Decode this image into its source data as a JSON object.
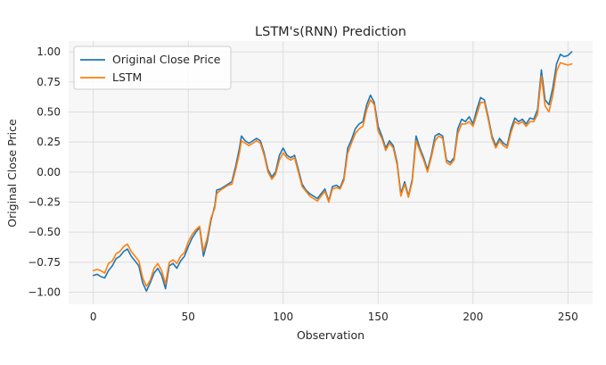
{
  "chart_data": {
    "type": "line",
    "title": "LSTM's(RNN) Prediction",
    "xlabel": "Observation",
    "ylabel": "Original Close Price",
    "xlim": [
      -13,
      263
    ],
    "ylim": [
      -1.1,
      1.09
    ],
    "xticks": [
      0,
      50,
      100,
      150,
      200,
      250
    ],
    "yticks": [
      -1.0,
      -0.75,
      -0.5,
      -0.25,
      0.0,
      0.25,
      0.5,
      0.75,
      1.0
    ],
    "xtick_labels": [
      "0",
      "50",
      "100",
      "150",
      "200",
      "250"
    ],
    "ytick_labels": [
      "−1.00",
      "−0.75",
      "−0.50",
      "−0.25",
      "0.00",
      "0.25",
      "0.50",
      "0.75",
      "1.00"
    ],
    "grid": true,
    "legend_position": "top-left",
    "series": [
      {
        "name": "Original Close Price",
        "color": "#1f77b4",
        "points": [
          [
            0,
            -0.86
          ],
          [
            2,
            -0.85
          ],
          [
            4,
            -0.87
          ],
          [
            6,
            -0.88
          ],
          [
            8,
            -0.82
          ],
          [
            10,
            -0.78
          ],
          [
            12,
            -0.72
          ],
          [
            14,
            -0.7
          ],
          [
            16,
            -0.66
          ],
          [
            18,
            -0.64
          ],
          [
            20,
            -0.7
          ],
          [
            22,
            -0.74
          ],
          [
            24,
            -0.78
          ],
          [
            26,
            -0.92
          ],
          [
            28,
            -0.99
          ],
          [
            30,
            -0.92
          ],
          [
            32,
            -0.84
          ],
          [
            34,
            -0.8
          ],
          [
            36,
            -0.86
          ],
          [
            38,
            -0.97
          ],
          [
            40,
            -0.78
          ],
          [
            42,
            -0.76
          ],
          [
            44,
            -0.8
          ],
          [
            46,
            -0.74
          ],
          [
            48,
            -0.7
          ],
          [
            50,
            -0.62
          ],
          [
            52,
            -0.55
          ],
          [
            54,
            -0.5
          ],
          [
            56,
            -0.46
          ],
          [
            58,
            -0.7
          ],
          [
            60,
            -0.58
          ],
          [
            62,
            -0.4
          ],
          [
            64,
            -0.28
          ],
          [
            65,
            -0.15
          ],
          [
            67,
            -0.14
          ],
          [
            69,
            -0.12
          ],
          [
            71,
            -0.1
          ],
          [
            73,
            -0.08
          ],
          [
            75,
            0.05
          ],
          [
            77,
            0.2
          ],
          [
            78,
            0.3
          ],
          [
            80,
            0.26
          ],
          [
            82,
            0.24
          ],
          [
            84,
            0.26
          ],
          [
            86,
            0.28
          ],
          [
            88,
            0.26
          ],
          [
            90,
            0.16
          ],
          [
            92,
            0.02
          ],
          [
            94,
            -0.04
          ],
          [
            96,
            0.0
          ],
          [
            98,
            0.14
          ],
          [
            100,
            0.2
          ],
          [
            102,
            0.14
          ],
          [
            104,
            0.12
          ],
          [
            106,
            0.14
          ],
          [
            108,
            0.02
          ],
          [
            110,
            -0.1
          ],
          [
            112,
            -0.15
          ],
          [
            114,
            -0.18
          ],
          [
            116,
            -0.2
          ],
          [
            118,
            -0.22
          ],
          [
            120,
            -0.18
          ],
          [
            122,
            -0.14
          ],
          [
            124,
            -0.24
          ],
          [
            126,
            -0.12
          ],
          [
            128,
            -0.11
          ],
          [
            130,
            -0.13
          ],
          [
            132,
            -0.05
          ],
          [
            134,
            0.2
          ],
          [
            136,
            0.27
          ],
          [
            138,
            0.36
          ],
          [
            140,
            0.4
          ],
          [
            142,
            0.42
          ],
          [
            144,
            0.56
          ],
          [
            146,
            0.64
          ],
          [
            148,
            0.58
          ],
          [
            150,
            0.38
          ],
          [
            152,
            0.3
          ],
          [
            154,
            0.2
          ],
          [
            156,
            0.26
          ],
          [
            158,
            0.22
          ],
          [
            160,
            0.08
          ],
          [
            162,
            -0.18
          ],
          [
            164,
            -0.08
          ],
          [
            166,
            -0.2
          ],
          [
            168,
            -0.06
          ],
          [
            170,
            0.3
          ],
          [
            172,
            0.2
          ],
          [
            174,
            0.12
          ],
          [
            176,
            0.02
          ],
          [
            178,
            0.14
          ],
          [
            180,
            0.3
          ],
          [
            182,
            0.32
          ],
          [
            184,
            0.3
          ],
          [
            186,
            0.1
          ],
          [
            188,
            0.08
          ],
          [
            190,
            0.12
          ],
          [
            192,
            0.36
          ],
          [
            194,
            0.44
          ],
          [
            196,
            0.42
          ],
          [
            198,
            0.46
          ],
          [
            200,
            0.4
          ],
          [
            202,
            0.52
          ],
          [
            204,
            0.62
          ],
          [
            206,
            0.6
          ],
          [
            208,
            0.46
          ],
          [
            210,
            0.3
          ],
          [
            212,
            0.22
          ],
          [
            214,
            0.28
          ],
          [
            216,
            0.24
          ],
          [
            218,
            0.22
          ],
          [
            220,
            0.36
          ],
          [
            222,
            0.45
          ],
          [
            224,
            0.42
          ],
          [
            226,
            0.44
          ],
          [
            228,
            0.4
          ],
          [
            230,
            0.45
          ],
          [
            232,
            0.44
          ],
          [
            234,
            0.52
          ],
          [
            236,
            0.85
          ],
          [
            238,
            0.6
          ],
          [
            240,
            0.56
          ],
          [
            242,
            0.7
          ],
          [
            244,
            0.9
          ],
          [
            246,
            0.98
          ],
          [
            248,
            0.96
          ],
          [
            250,
            0.97
          ],
          [
            252,
            1.0
          ]
        ]
      },
      {
        "name": "LSTM",
        "color": "#ff7f0e",
        "points": [
          [
            0,
            -0.82
          ],
          [
            2,
            -0.81
          ],
          [
            4,
            -0.82
          ],
          [
            6,
            -0.84
          ],
          [
            8,
            -0.76
          ],
          [
            10,
            -0.74
          ],
          [
            12,
            -0.68
          ],
          [
            14,
            -0.66
          ],
          [
            16,
            -0.62
          ],
          [
            18,
            -0.6
          ],
          [
            20,
            -0.66
          ],
          [
            22,
            -0.7
          ],
          [
            24,
            -0.74
          ],
          [
            26,
            -0.88
          ],
          [
            28,
            -0.95
          ],
          [
            30,
            -0.9
          ],
          [
            32,
            -0.8
          ],
          [
            34,
            -0.76
          ],
          [
            36,
            -0.82
          ],
          [
            38,
            -0.93
          ],
          [
            40,
            -0.75
          ],
          [
            42,
            -0.73
          ],
          [
            44,
            -0.76
          ],
          [
            46,
            -0.7
          ],
          [
            48,
            -0.67
          ],
          [
            50,
            -0.58
          ],
          [
            52,
            -0.52
          ],
          [
            54,
            -0.48
          ],
          [
            56,
            -0.45
          ],
          [
            58,
            -0.66
          ],
          [
            60,
            -0.55
          ],
          [
            62,
            -0.38
          ],
          [
            64,
            -0.3
          ],
          [
            65,
            -0.18
          ],
          [
            67,
            -0.15
          ],
          [
            69,
            -0.13
          ],
          [
            71,
            -0.11
          ],
          [
            73,
            -0.1
          ],
          [
            75,
            0.02
          ],
          [
            77,
            0.16
          ],
          [
            78,
            0.26
          ],
          [
            80,
            0.24
          ],
          [
            82,
            0.22
          ],
          [
            84,
            0.24
          ],
          [
            86,
            0.26
          ],
          [
            88,
            0.24
          ],
          [
            90,
            0.14
          ],
          [
            92,
            0.0
          ],
          [
            94,
            -0.06
          ],
          [
            96,
            -0.02
          ],
          [
            98,
            0.1
          ],
          [
            100,
            0.16
          ],
          [
            102,
            0.12
          ],
          [
            104,
            0.1
          ],
          [
            106,
            0.12
          ],
          [
            108,
            0.0
          ],
          [
            110,
            -0.12
          ],
          [
            112,
            -0.16
          ],
          [
            114,
            -0.2
          ],
          [
            116,
            -0.22
          ],
          [
            118,
            -0.24
          ],
          [
            120,
            -0.2
          ],
          [
            122,
            -0.16
          ],
          [
            124,
            -0.25
          ],
          [
            126,
            -0.14
          ],
          [
            128,
            -0.13
          ],
          [
            130,
            -0.14
          ],
          [
            132,
            -0.07
          ],
          [
            134,
            0.16
          ],
          [
            136,
            0.24
          ],
          [
            138,
            0.32
          ],
          [
            140,
            0.36
          ],
          [
            142,
            0.38
          ],
          [
            144,
            0.52
          ],
          [
            146,
            0.6
          ],
          [
            148,
            0.56
          ],
          [
            150,
            0.34
          ],
          [
            152,
            0.28
          ],
          [
            154,
            0.18
          ],
          [
            156,
            0.24
          ],
          [
            158,
            0.2
          ],
          [
            160,
            0.06
          ],
          [
            162,
            -0.2
          ],
          [
            164,
            -0.1
          ],
          [
            166,
            -0.21
          ],
          [
            168,
            -0.08
          ],
          [
            170,
            0.26
          ],
          [
            172,
            0.18
          ],
          [
            174,
            0.1
          ],
          [
            176,
            0.0
          ],
          [
            178,
            0.12
          ],
          [
            180,
            0.26
          ],
          [
            182,
            0.3
          ],
          [
            184,
            0.28
          ],
          [
            186,
            0.08
          ],
          [
            188,
            0.06
          ],
          [
            190,
            0.1
          ],
          [
            192,
            0.32
          ],
          [
            194,
            0.4
          ],
          [
            196,
            0.4
          ],
          [
            198,
            0.42
          ],
          [
            200,
            0.38
          ],
          [
            202,
            0.48
          ],
          [
            204,
            0.58
          ],
          [
            206,
            0.58
          ],
          [
            208,
            0.44
          ],
          [
            210,
            0.28
          ],
          [
            212,
            0.2
          ],
          [
            214,
            0.26
          ],
          [
            216,
            0.22
          ],
          [
            218,
            0.2
          ],
          [
            220,
            0.33
          ],
          [
            222,
            0.42
          ],
          [
            224,
            0.4
          ],
          [
            226,
            0.42
          ],
          [
            228,
            0.38
          ],
          [
            230,
            0.42
          ],
          [
            232,
            0.42
          ],
          [
            234,
            0.48
          ],
          [
            236,
            0.8
          ],
          [
            238,
            0.55
          ],
          [
            240,
            0.5
          ],
          [
            242,
            0.64
          ],
          [
            244,
            0.84
          ],
          [
            246,
            0.91
          ],
          [
            248,
            0.9
          ],
          [
            250,
            0.89
          ],
          [
            252,
            0.9
          ]
        ]
      }
    ]
  }
}
